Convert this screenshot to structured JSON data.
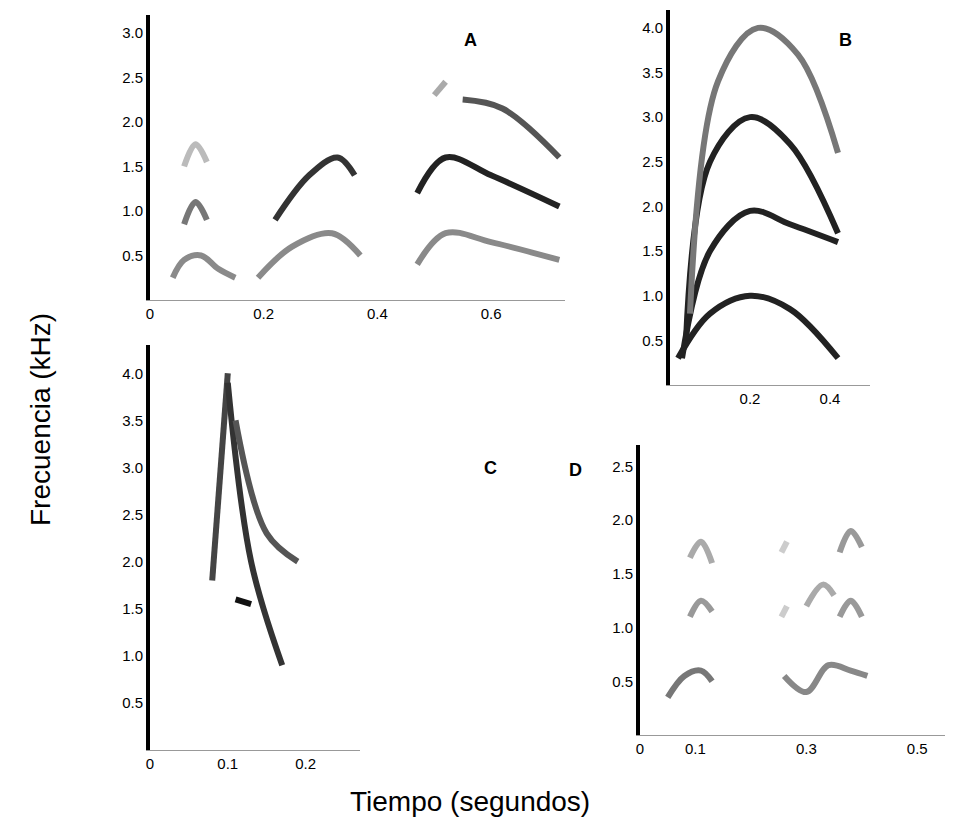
{
  "x_label": "Tiempo (segundos)",
  "y_label": "Frecuencia (kHz)",
  "chart_data": [
    {
      "type": "line",
      "title": "A",
      "xlim": [
        0,
        0.73
      ],
      "xticks": [
        0,
        0.2,
        0.4,
        0.6
      ],
      "ylim": [
        0,
        3.2
      ],
      "yticks": [
        0.5,
        {
          "value": 1,
          "label": "1.0"
        },
        1.5,
        {
          "value": 2,
          "label": "2.0"
        },
        2.5,
        {
          "value": 3,
          "label": "3.0"
        }
      ],
      "series": [
        {
          "color": "#8a8a8a",
          "x": [
            0.04,
            0.06,
            0.09,
            0.12,
            0.15
          ],
          "values": [
            0.25,
            0.45,
            0.5,
            0.35,
            0.25
          ]
        },
        {
          "color": "#777777",
          "x": [
            0.06,
            0.08,
            0.1
          ],
          "values": [
            0.85,
            1.1,
            0.9
          ]
        },
        {
          "color": "#bbbbbb",
          "x": [
            0.06,
            0.08,
            0.1
          ],
          "values": [
            1.5,
            1.75,
            1.55
          ]
        },
        {
          "color": "#8a8a8a",
          "x": [
            0.19,
            0.25,
            0.32,
            0.37
          ],
          "values": [
            0.25,
            0.6,
            0.75,
            0.5
          ]
        },
        {
          "color": "#333333",
          "x": [
            0.22,
            0.28,
            0.33,
            0.36
          ],
          "values": [
            0.9,
            1.4,
            1.6,
            1.4
          ]
        },
        {
          "color": "#8a8a8a",
          "x": [
            0.47,
            0.52,
            0.6,
            0.72
          ],
          "values": [
            0.4,
            0.75,
            0.65,
            0.45
          ]
        },
        {
          "color": "#222222",
          "x": [
            0.47,
            0.52,
            0.6,
            0.72
          ],
          "values": [
            1.2,
            1.6,
            1.4,
            1.05
          ]
        },
        {
          "color": "#aaaaaa",
          "x": [
            0.5,
            0.52
          ],
          "values": [
            2.3,
            2.45
          ]
        },
        {
          "color": "#555555",
          "x": [
            0.55,
            0.62,
            0.72
          ],
          "values": [
            2.25,
            2.15,
            1.6
          ]
        }
      ]
    },
    {
      "type": "line",
      "title": "B",
      "xlim": [
        0,
        0.5
      ],
      "xticks": [
        0.2,
        0.4
      ],
      "ylim": [
        0,
        4.2
      ],
      "yticks": [
        0.5,
        {
          "value": 1,
          "label": "1.0"
        },
        1.5,
        {
          "value": 2,
          "label": "2.0"
        },
        2.5,
        {
          "value": 3,
          "label": "3.0"
        },
        3.5,
        {
          "value": 4,
          "label": "4.0"
        }
      ],
      "series": [
        {
          "color": "#222222",
          "x": [
            0.02,
            0.1,
            0.2,
            0.3,
            0.42
          ],
          "values": [
            0.3,
            0.8,
            1.0,
            0.85,
            0.3
          ]
        },
        {
          "color": "#222222",
          "x": [
            0.03,
            0.1,
            0.2,
            0.3,
            0.42
          ],
          "values": [
            0.3,
            1.5,
            1.95,
            1.8,
            1.6
          ]
        },
        {
          "color": "#222222",
          "x": [
            0.04,
            0.1,
            0.2,
            0.3,
            0.42
          ],
          "values": [
            0.5,
            2.5,
            3.0,
            2.7,
            1.7
          ]
        },
        {
          "color": "#777777",
          "x": [
            0.05,
            0.12,
            0.22,
            0.32,
            0.42
          ],
          "values": [
            0.8,
            3.4,
            4.0,
            3.7,
            2.6
          ]
        }
      ]
    },
    {
      "type": "line",
      "title": "C",
      "xlim": [
        0,
        0.27
      ],
      "xticks": [
        0,
        0.1,
        0.2
      ],
      "ylim": [
        0,
        4.3
      ],
      "yticks": [
        0.5,
        {
          "value": 1,
          "label": "1.0"
        },
        1.5,
        {
          "value": 2,
          "label": "2.0"
        },
        2.5,
        {
          "value": 3,
          "label": "3.0"
        },
        3.5,
        {
          "value": 4,
          "label": "4.0"
        }
      ],
      "series": [
        {
          "color": "#444444",
          "x": [
            0.08,
            0.1
          ],
          "values": [
            1.8,
            4.0
          ]
        },
        {
          "color": "#333333",
          "x": [
            0.1,
            0.13,
            0.17
          ],
          "values": [
            3.9,
            2.0,
            0.9
          ]
        },
        {
          "color": "#555555",
          "x": [
            0.11,
            0.15,
            0.19
          ],
          "values": [
            3.5,
            2.3,
            2.0
          ]
        },
        {
          "color": "#111111",
          "x": [
            0.11,
            0.13
          ],
          "values": [
            1.6,
            1.55
          ]
        }
      ]
    },
    {
      "type": "line",
      "title": "D",
      "xlim": [
        0,
        0.55
      ],
      "xticks": [
        0,
        0.1,
        0.3,
        0.5
      ],
      "ylim": [
        0,
        2.7
      ],
      "yticks": [
        0.5,
        {
          "value": 1,
          "label": "1.0"
        },
        1.5,
        {
          "value": 2,
          "label": "2.0"
        },
        2.5
      ],
      "series": [
        {
          "color": "#777777",
          "x": [
            0.05,
            0.08,
            0.11,
            0.13
          ],
          "values": [
            0.35,
            0.55,
            0.6,
            0.5
          ]
        },
        {
          "color": "#999999",
          "x": [
            0.09,
            0.11,
            0.13
          ],
          "values": [
            1.1,
            1.25,
            1.15
          ]
        },
        {
          "color": "#aaaaaa",
          "x": [
            0.09,
            0.11,
            0.13
          ],
          "values": [
            1.65,
            1.8,
            1.6
          ]
        },
        {
          "color": "#888888",
          "x": [
            0.26,
            0.3,
            0.34,
            0.38,
            0.41
          ],
          "values": [
            0.55,
            0.4,
            0.65,
            0.6,
            0.55
          ]
        },
        {
          "color": "#999999",
          "x": [
            0.36,
            0.38,
            0.4
          ],
          "values": [
            1.1,
            1.25,
            1.1
          ]
        },
        {
          "color": "#999999",
          "x": [
            0.36,
            0.38,
            0.4
          ],
          "values": [
            1.7,
            1.9,
            1.75
          ]
        },
        {
          "color": "#aaaaaa",
          "x": [
            0.3,
            0.33,
            0.35
          ],
          "values": [
            1.2,
            1.4,
            1.3
          ]
        },
        {
          "color": "#cccccc",
          "x": [
            0.255,
            0.265
          ],
          "values": [
            1.1,
            1.2
          ]
        },
        {
          "color": "#cccccc",
          "x": [
            0.255,
            0.265
          ],
          "values": [
            1.7,
            1.8
          ]
        }
      ]
    }
  ]
}
